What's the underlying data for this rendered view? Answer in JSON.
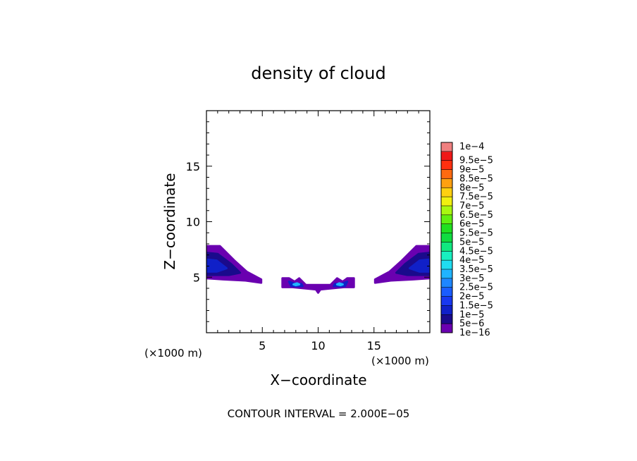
{
  "chart_data": {
    "type": "contour",
    "title": "density of cloud",
    "xlabel": "X−coordinate",
    "ylabel": "Z−coordinate",
    "x_unit": "(×1000 m)",
    "y_unit": "(×1000 m)",
    "xlim": [
      0,
      20
    ],
    "ylim": [
      0,
      20
    ],
    "x_ticks": [
      {
        "value": 5,
        "label": "5"
      },
      {
        "value": 10,
        "label": "10"
      },
      {
        "value": 15,
        "label": "15"
      }
    ],
    "y_ticks": [
      {
        "value": 5,
        "label": "5"
      },
      {
        "value": 10,
        "label": "10"
      },
      {
        "value": 15,
        "label": "15"
      }
    ],
    "footer": "CONTOUR INTERVAL = 2.000E−05",
    "colorbar": {
      "levels": [
        {
          "label": "1e−16",
          "color": "#6a00b0"
        },
        {
          "label": "5e−6",
          "color": "#1a0a8c"
        },
        {
          "label": "1e−5",
          "color": "#1020c8"
        },
        {
          "label": "1.5e−5",
          "color": "#1838f0"
        },
        {
          "label": "2e−5",
          "color": "#1a5cff"
        },
        {
          "label": "2.5e−5",
          "color": "#1e86ff"
        },
        {
          "label": "3e−5",
          "color": "#20b4ff"
        },
        {
          "label": "3.5e−5",
          "color": "#20dcf0"
        },
        {
          "label": "4e−5",
          "color": "#18f0c0"
        },
        {
          "label": "4.5e−5",
          "color": "#10e880"
        },
        {
          "label": "5e−5",
          "color": "#10dc40"
        },
        {
          "label": "5.5e−5",
          "color": "#20e020"
        },
        {
          "label": "6e−5",
          "color": "#60f010"
        },
        {
          "label": "6.5e−5",
          "color": "#a8f810"
        },
        {
          "label": "7e−5",
          "color": "#f0f010"
        },
        {
          "label": "7.5e−5",
          "color": "#ffd010"
        },
        {
          "label": "8e−5",
          "color": "#ffa010"
        },
        {
          "label": "8.5e−5",
          "color": "#ff6a10"
        },
        {
          "label": "9e−5",
          "color": "#ff3010"
        },
        {
          "label": "9.5e−5",
          "color": "#f01818"
        },
        {
          "label": "1e−4",
          "color": "#f08080"
        }
      ]
    },
    "regions": [
      {
        "name": "left-cloud",
        "level": 0,
        "points": [
          [
            0,
            7.8
          ],
          [
            1.2,
            7.8
          ],
          [
            2.5,
            6.5
          ],
          [
            3.6,
            5.5
          ],
          [
            4.9,
            4.8
          ],
          [
            4.9,
            4.5
          ],
          [
            3.5,
            4.7
          ],
          [
            1.5,
            4.8
          ],
          [
            0,
            4.9
          ]
        ]
      },
      {
        "name": "left-cloud-core",
        "level": 1,
        "points": [
          [
            0,
            7.2
          ],
          [
            1.0,
            7.1
          ],
          [
            2.2,
            6.2
          ],
          [
            3.0,
            5.4
          ],
          [
            2.0,
            5.2
          ],
          [
            0,
            5.2
          ]
        ]
      },
      {
        "name": "left-cloud-inner",
        "level": 2,
        "points": [
          [
            0,
            6.6
          ],
          [
            0.9,
            6.5
          ],
          [
            1.8,
            5.8
          ],
          [
            0.9,
            5.5
          ],
          [
            0,
            5.5
          ]
        ]
      },
      {
        "name": "right-cloud",
        "level": 0,
        "points": [
          [
            20,
            7.8
          ],
          [
            18.8,
            7.8
          ],
          [
            17.5,
            6.5
          ],
          [
            16.4,
            5.5
          ],
          [
            15.1,
            4.8
          ],
          [
            15.1,
            4.5
          ],
          [
            16.5,
            4.7
          ],
          [
            18.5,
            4.8
          ],
          [
            20,
            4.9
          ]
        ]
      },
      {
        "name": "right-cloud-core",
        "level": 1,
        "points": [
          [
            20,
            7.2
          ],
          [
            19.0,
            7.1
          ],
          [
            17.8,
            6.2
          ],
          [
            17.0,
            5.4
          ],
          [
            18.0,
            5.2
          ],
          [
            20,
            5.2
          ]
        ]
      },
      {
        "name": "right-cloud-inner",
        "level": 2,
        "points": [
          [
            20,
            6.6
          ],
          [
            19.1,
            6.5
          ],
          [
            18.2,
            5.8
          ],
          [
            19.1,
            5.5
          ],
          [
            20,
            5.5
          ]
        ]
      },
      {
        "name": "center-cloud",
        "level": 0,
        "points": [
          [
            6.8,
            4.9
          ],
          [
            7.4,
            4.9
          ],
          [
            7.9,
            4.6
          ],
          [
            8.3,
            4.9
          ],
          [
            8.9,
            4.3
          ],
          [
            11.1,
            4.3
          ],
          [
            11.7,
            4.9
          ],
          [
            12.2,
            4.6
          ],
          [
            12.6,
            4.9
          ],
          [
            13.2,
            4.9
          ],
          [
            13.2,
            4.1
          ],
          [
            12.3,
            4.1
          ],
          [
            10.2,
            3.9
          ],
          [
            10.0,
            3.6
          ],
          [
            9.8,
            3.9
          ],
          [
            7.7,
            4.1
          ],
          [
            6.8,
            4.1
          ]
        ]
      },
      {
        "name": "center-core-left",
        "level": 2,
        "points": [
          [
            7.4,
            4.6
          ],
          [
            7.9,
            4.4
          ],
          [
            8.5,
            4.4
          ],
          [
            8.6,
            4.2
          ],
          [
            7.6,
            4.2
          ]
        ]
      },
      {
        "name": "center-core-right",
        "level": 2,
        "points": [
          [
            12.6,
            4.6
          ],
          [
            12.1,
            4.4
          ],
          [
            11.5,
            4.4
          ],
          [
            11.4,
            4.2
          ],
          [
            12.4,
            4.2
          ]
        ]
      },
      {
        "name": "center-peak-left",
        "level": 6,
        "points": [
          [
            7.8,
            4.35
          ],
          [
            8.1,
            4.45
          ],
          [
            8.3,
            4.35
          ],
          [
            8.0,
            4.28
          ]
        ]
      },
      {
        "name": "center-peak-right",
        "level": 6,
        "points": [
          [
            12.2,
            4.35
          ],
          [
            11.9,
            4.45
          ],
          [
            11.7,
            4.35
          ],
          [
            12.0,
            4.28
          ]
        ]
      }
    ]
  }
}
